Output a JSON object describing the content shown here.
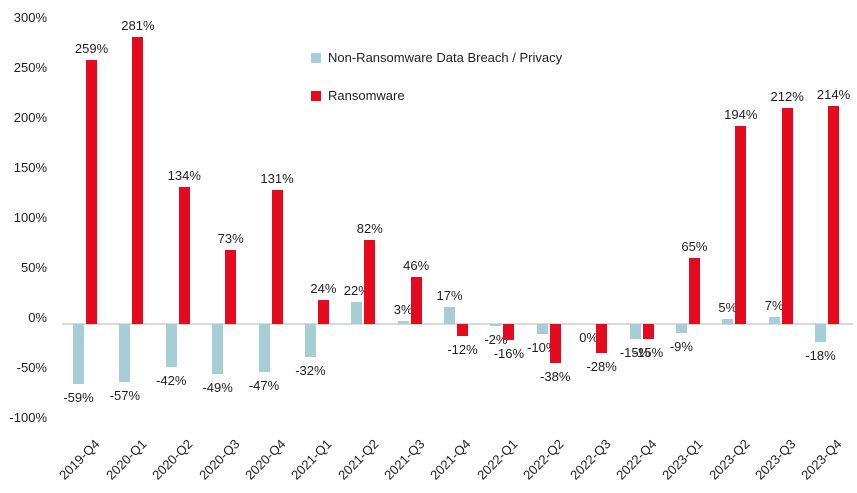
{
  "chart_data": {
    "type": "bar",
    "title": "",
    "categories": [
      "2019-Q4",
      "2020-Q1",
      "2020-Q2",
      "2020-Q3",
      "2020-Q4",
      "2021-Q1",
      "2021-Q2",
      "2021-Q3",
      "2021-Q4",
      "2022-Q1",
      "2022-Q2",
      "2022-Q3",
      "2022-Q4",
      "2023-Q1",
      "2023-Q2",
      "2023-Q3",
      "2023-Q4"
    ],
    "series": [
      {
        "name": "Non-Ransomware Data Breach / Privacy",
        "color": "#a7ced6",
        "values": [
          -59,
          -57,
          -42,
          -49,
          -47,
          -32,
          22,
          3,
          17,
          -2,
          -10,
          0,
          -15,
          -9,
          5,
          7,
          -18
        ]
      },
      {
        "name": "Ransomware",
        "color": "#e60a1f",
        "values": [
          259,
          281,
          134,
          73,
          131,
          24,
          82,
          46,
          -12,
          -16,
          -38,
          -28,
          -15,
          65,
          194,
          212,
          214
        ]
      }
    ],
    "y_axis": {
      "ticks": [
        {
          "value": 300,
          "label": "300%"
        },
        {
          "value": 250,
          "label": "250%"
        },
        {
          "value": 200,
          "label": "200%"
        },
        {
          "value": 150,
          "label": "150%"
        },
        {
          "value": 100,
          "label": "100%"
        },
        {
          "value": 50,
          "label": "50%"
        },
        {
          "value": 0,
          "label": "0%"
        },
        {
          "value": -50,
          "label": "-50%"
        },
        {
          "value": -100,
          "label": "-100%"
        }
      ]
    },
    "ylim": [
      -100,
      300
    ],
    "grid": false,
    "legend_position": "top-center",
    "value_label_suffix": "%",
    "axis_line_color": "#d9d9d9",
    "label_color": "#1f1f1f"
  }
}
